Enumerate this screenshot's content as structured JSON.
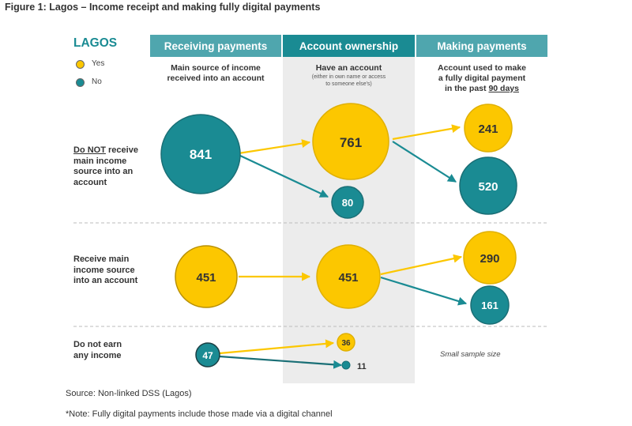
{
  "title": "Figure 1: Lagos – Income receipt and making fully digital payments",
  "brand": "LAGOS",
  "legend": {
    "yes_label": "Yes",
    "no_label": "No"
  },
  "colors": {
    "yes": "#fcc700",
    "no": "#1a8b93",
    "header": "#4fa6ae",
    "header_mid": "#1a8b93"
  },
  "columns": [
    {
      "header": "Receiving payments",
      "subtitle_line1": "Main source of income",
      "subtitle_line2": "received into an account"
    },
    {
      "header": "Account ownership",
      "subtitle": "Have an account",
      "note_line1": "(either in own name or access",
      "note_line2": "to someone else's)"
    },
    {
      "header": "Making payments",
      "subtitle_line1": "Account used to make",
      "subtitle_line2": "a fully digital payment",
      "subtitle_line3_prefix": "in the past ",
      "subtitle_line3_underlined": "90 days"
    }
  ],
  "rows": [
    {
      "label_underlined": "Do NOT",
      "label_rest": " receive",
      "label_line2": "main income",
      "label_line3": "source into an",
      "label_line4": "account"
    },
    {
      "label_line1": "Receive main",
      "label_line2": "income source",
      "label_line3": "into an account"
    },
    {
      "label_line1": "Do not earn",
      "label_line2": "any income"
    }
  ],
  "flow": {
    "row1": {
      "receive": "841",
      "has_account": "761",
      "no_account": "80",
      "digital_yes": "241",
      "digital_no": "520"
    },
    "row2": {
      "receive": "451",
      "has_account": "451",
      "digital_yes": "290",
      "digital_no": "161"
    },
    "row3": {
      "receive": "47",
      "has_account": "36",
      "no_account": "11"
    }
  },
  "sample_note": "Small sample size",
  "source": "Source: Non-linked DSS (Lagos)",
  "footnote": "*Note: Fully digital payments include those made via a digital channel"
}
